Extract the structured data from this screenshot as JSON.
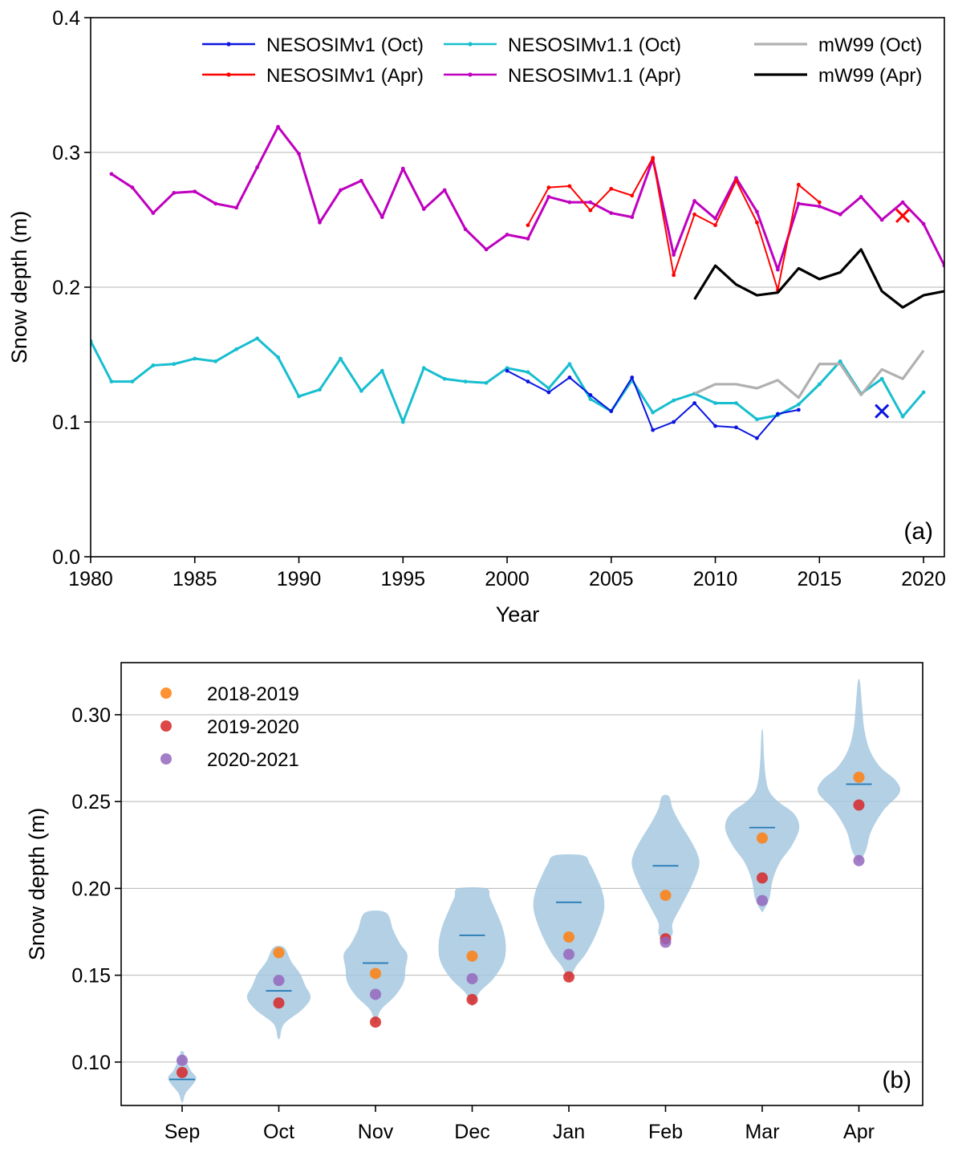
{
  "chart_data": [
    {
      "id": "a",
      "type": "line",
      "panel_label": "(a)",
      "xlabel": "Year",
      "ylabel": "Snow depth (m)",
      "xlim": [
        1980,
        2021
      ],
      "ylim": [
        0.0,
        0.4
      ],
      "xticks": [
        1980,
        1985,
        1990,
        1995,
        2000,
        2005,
        2010,
        2015,
        2020
      ],
      "yticks": [
        0.0,
        0.1,
        0.2,
        0.3,
        0.4
      ],
      "ytick_labels": [
        "0.0",
        "0.1",
        "0.2",
        "0.3",
        "0.4"
      ],
      "grid": "horizontal",
      "legend_position": "top",
      "series": [
        {
          "name": "NESOSIMv1.1 (Oct)",
          "color": "#17becf",
          "markers": true,
          "x": [
            1980,
            1981,
            1982,
            1983,
            1984,
            1985,
            1986,
            1987,
            1988,
            1989,
            1990,
            1991,
            1992,
            1993,
            1994,
            1995,
            1996,
            1997,
            1998,
            1999,
            2000,
            2001,
            2002,
            2003,
            2004,
            2005,
            2006,
            2007,
            2008,
            2009,
            2010,
            2011,
            2012,
            2013,
            2014,
            2015,
            2016,
            2017,
            2018,
            2019,
            2020
          ],
          "values": [
            0.16,
            0.13,
            0.13,
            0.142,
            0.143,
            0.147,
            0.145,
            0.154,
            0.162,
            0.148,
            0.119,
            0.124,
            0.147,
            0.123,
            0.138,
            0.1,
            0.14,
            0.132,
            0.13,
            0.129,
            0.14,
            0.137,
            0.125,
            0.143,
            0.117,
            0.108,
            0.131,
            0.107,
            0.116,
            0.121,
            0.114,
            0.114,
            0.102,
            0.105,
            0.113,
            0.128,
            0.145,
            0.121,
            0.132,
            0.104,
            0.122
          ]
        },
        {
          "name": "NESOSIMv1 (Oct)",
          "color": "#0a15e0",
          "markers": true,
          "x": [
            2000,
            2001,
            2002,
            2003,
            2004,
            2005,
            2006,
            2007,
            2008,
            2009,
            2010,
            2011,
            2012,
            2013,
            2014
          ],
          "values": [
            0.138,
            0.13,
            0.122,
            0.133,
            0.12,
            0.108,
            0.133,
            0.094,
            0.1,
            0.114,
            0.097,
            0.096,
            0.088,
            0.106,
            0.109
          ]
        },
        {
          "name": "mW99 (Oct)",
          "color": "#b0b0b0",
          "markers": false,
          "x": [
            2009,
            2010,
            2011,
            2012,
            2013,
            2014,
            2015,
            2016,
            2017,
            2018,
            2019,
            2020
          ],
          "values": [
            0.121,
            0.128,
            0.128,
            0.125,
            0.131,
            0.118,
            0.143,
            0.143,
            0.12,
            0.139,
            0.132,
            0.153
          ]
        },
        {
          "name": "NESOSIMv1.1 (Apr)",
          "color": "#bf00bf",
          "markers": true,
          "x": [
            1981,
            1982,
            1983,
            1984,
            1985,
            1986,
            1987,
            1988,
            1989,
            1990,
            1991,
            1992,
            1993,
            1994,
            1995,
            1996,
            1997,
            1998,
            1999,
            2000,
            2001,
            2002,
            2003,
            2004,
            2005,
            2006,
            2007,
            2008,
            2009,
            2010,
            2011,
            2012,
            2013,
            2014,
            2015,
            2016,
            2017,
            2018,
            2019,
            2020,
            2021
          ],
          "values": [
            0.284,
            0.274,
            0.255,
            0.27,
            0.271,
            0.262,
            0.259,
            0.289,
            0.319,
            0.299,
            0.248,
            0.272,
            0.279,
            0.252,
            0.288,
            0.258,
            0.272,
            0.243,
            0.228,
            0.239,
            0.236,
            0.267,
            0.263,
            0.263,
            0.255,
            0.252,
            0.295,
            0.224,
            0.264,
            0.251,
            0.281,
            0.256,
            0.213,
            0.262,
            0.26,
            0.254,
            0.267,
            0.25,
            0.263,
            0.247,
            0.216
          ]
        },
        {
          "name": "NESOSIMv1 (Apr)",
          "color": "#ff0000",
          "markers": true,
          "x": [
            2001,
            2002,
            2003,
            2004,
            2005,
            2006,
            2007,
            2008,
            2009,
            2010,
            2011,
            2012,
            2013,
            2014,
            2015
          ],
          "values": [
            0.246,
            0.274,
            0.275,
            0.257,
            0.273,
            0.268,
            0.296,
            0.209,
            0.254,
            0.246,
            0.279,
            0.248,
            0.198,
            0.276,
            0.263
          ]
        },
        {
          "name": "mW99 (Apr)",
          "color": "#000000",
          "markers": false,
          "x": [
            2009,
            2010,
            2011,
            2012,
            2013,
            2014,
            2015,
            2016,
            2017,
            2018,
            2019,
            2020,
            2021
          ],
          "values": [
            0.191,
            0.216,
            0.202,
            0.194,
            0.196,
            0.214,
            0.206,
            0.211,
            0.228,
            0.197,
            0.185,
            0.194,
            0.197
          ]
        }
      ],
      "cross_markers": [
        {
          "x": 2019,
          "y": 0.253,
          "color": "#ff0000"
        },
        {
          "x": 2018,
          "y": 0.108,
          "color": "#0a15e0"
        }
      ],
      "legend": [
        {
          "label": "NESOSIMv1 (Oct)",
          "color": "#0a15e0",
          "markers": true
        },
        {
          "label": "NESOSIMv1.1 (Oct)",
          "color": "#17becf",
          "markers": true
        },
        {
          "label": "mW99 (Oct)",
          "color": "#b0b0b0",
          "markers": false
        },
        {
          "label": "NESOSIMv1 (Apr)",
          "color": "#ff0000",
          "markers": true
        },
        {
          "label": "NESOSIMv1.1 (Apr)",
          "color": "#bf00bf",
          "markers": true
        },
        {
          "label": "mW99 (Apr)",
          "color": "#000000",
          "markers": false
        }
      ]
    },
    {
      "id": "b",
      "type": "violin",
      "panel_label": "(b)",
      "xlabel": "",
      "ylabel": "Snow depth (m)",
      "ylim": [
        0.075,
        0.33
      ],
      "yticks": [
        0.1,
        0.15,
        0.2,
        0.25,
        0.3
      ],
      "ytick_labels": [
        "0.10",
        "0.15",
        "0.20",
        "0.25",
        "0.30"
      ],
      "categories": [
        "Sep",
        "Oct",
        "Nov",
        "Dec",
        "Jan",
        "Feb",
        "Mar",
        "Apr"
      ],
      "grid": "horizontal",
      "legend_position": "top-left",
      "violin_color": "#a6c8e0",
      "mean_color": "#1f77b4",
      "violins": [
        {
          "profile": [
            [
              0.077,
              0.4
            ],
            [
              0.082,
              2
            ],
            [
              0.087,
              6
            ],
            [
              0.091,
              8
            ],
            [
              0.095,
              5
            ],
            [
              0.099,
              3
            ],
            [
              0.103,
              1.5
            ],
            [
              0.106,
              0.8
            ]
          ],
          "mean": 0.09
        },
        {
          "profile": [
            [
              0.114,
              0.6
            ],
            [
              0.122,
              3
            ],
            [
              0.13,
              13
            ],
            [
              0.137,
              18
            ],
            [
              0.144,
              15
            ],
            [
              0.151,
              12
            ],
            [
              0.158,
              7
            ],
            [
              0.166,
              3
            ]
          ],
          "mean": 0.141
        },
        {
          "profile": [
            [
              0.123,
              0.6
            ],
            [
              0.13,
              3
            ],
            [
              0.138,
              11
            ],
            [
              0.146,
              16
            ],
            [
              0.154,
              17
            ],
            [
              0.162,
              18
            ],
            [
              0.168,
              14
            ],
            [
              0.176,
              10
            ],
            [
              0.186,
              6
            ]
          ],
          "mean": 0.157
        },
        {
          "profile": [
            [
              0.133,
              0.6
            ],
            [
              0.14,
              4
            ],
            [
              0.148,
              12
            ],
            [
              0.158,
              18
            ],
            [
              0.168,
              19
            ],
            [
              0.178,
              17
            ],
            [
              0.188,
              13
            ],
            [
              0.195,
              10
            ],
            [
              0.2,
              8
            ]
          ],
          "mean": 0.173
        },
        {
          "profile": [
            [
              0.148,
              0.6
            ],
            [
              0.155,
              4
            ],
            [
              0.163,
              10
            ],
            [
              0.175,
              16
            ],
            [
              0.188,
              20
            ],
            [
              0.198,
              19
            ],
            [
              0.208,
              15
            ],
            [
              0.214,
              12
            ],
            [
              0.219,
              8
            ]
          ],
          "mean": 0.192
        },
        {
          "profile": [
            [
              0.169,
              0.6
            ],
            [
              0.174,
              4
            ],
            [
              0.18,
              4
            ],
            [
              0.19,
              9
            ],
            [
              0.202,
              15
            ],
            [
              0.213,
              19
            ],
            [
              0.22,
              18
            ],
            [
              0.228,
              14
            ],
            [
              0.238,
              8
            ],
            [
              0.246,
              4
            ],
            [
              0.253,
              2
            ]
          ],
          "mean": 0.213
        },
        {
          "profile": [
            [
              0.187,
              0.6
            ],
            [
              0.194,
              4
            ],
            [
              0.205,
              6
            ],
            [
              0.215,
              10
            ],
            [
              0.225,
              17
            ],
            [
              0.235,
              21
            ],
            [
              0.243,
              18
            ],
            [
              0.25,
              9
            ],
            [
              0.256,
              4
            ],
            [
              0.264,
              2
            ],
            [
              0.276,
              1
            ],
            [
              0.29,
              0.4
            ]
          ],
          "mean": 0.235
        },
        {
          "profile": [
            [
              0.216,
              0.6
            ],
            [
              0.222,
              4
            ],
            [
              0.233,
              7
            ],
            [
              0.245,
              14
            ],
            [
              0.255,
              23
            ],
            [
              0.262,
              21
            ],
            [
              0.27,
              12
            ],
            [
              0.28,
              6
            ],
            [
              0.292,
              3
            ],
            [
              0.305,
              1.8
            ],
            [
              0.315,
              1
            ],
            [
              0.32,
              0.4
            ]
          ],
          "mean": 0.26
        }
      ],
      "points": [
        {
          "name": "2018-2019",
          "color": "#ff7f0e",
          "values": [
            null,
            0.163,
            0.151,
            0.161,
            0.172,
            0.196,
            0.229,
            0.264
          ]
        },
        {
          "name": "2019-2020",
          "color": "#d62728",
          "values": [
            0.094,
            0.134,
            0.123,
            0.136,
            0.149,
            0.171,
            0.206,
            0.248
          ]
        },
        {
          "name": "2020-2021",
          "color": "#9467bd",
          "values": [
            0.101,
            0.147,
            0.139,
            0.148,
            0.162,
            0.169,
            0.193,
            0.216
          ]
        }
      ]
    }
  ]
}
